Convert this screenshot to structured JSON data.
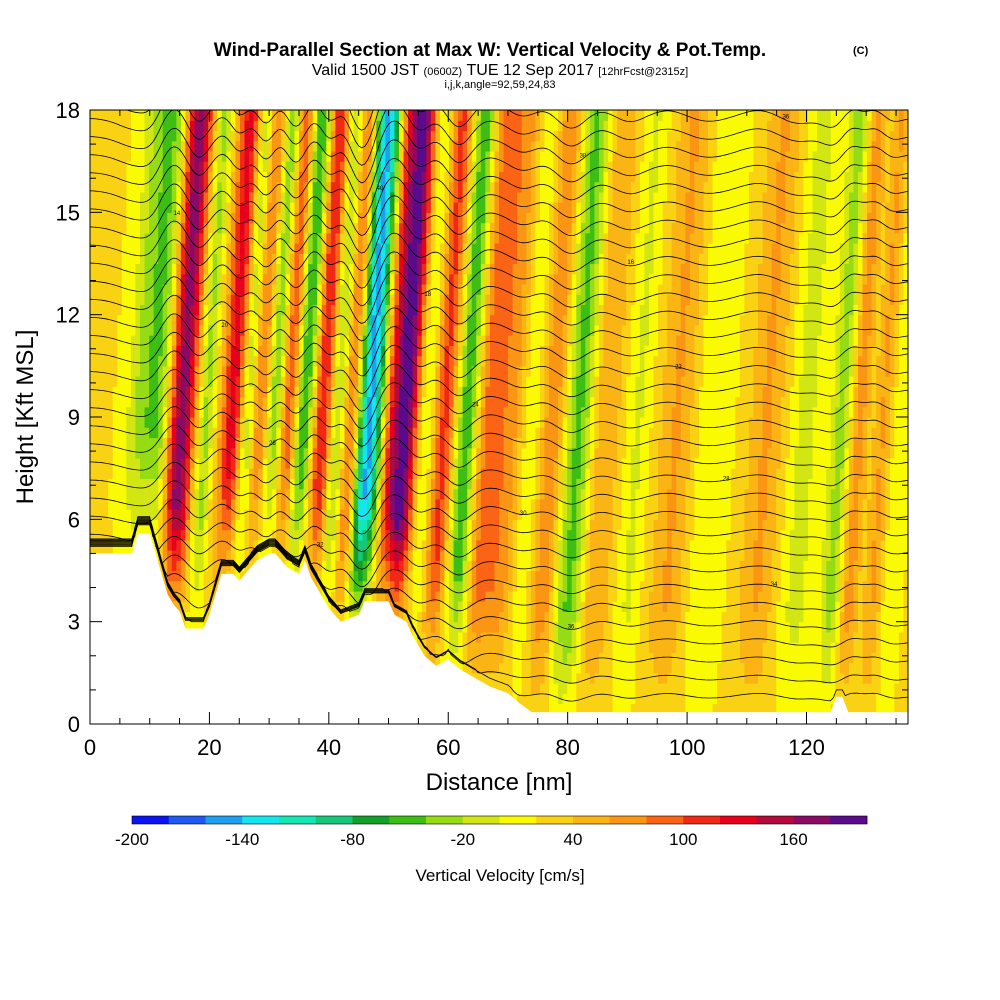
{
  "chart_data": {
    "type": "heatmap",
    "title": "Wind-Parallel Section at Max W: Vertical Velocity & Pot.Temp.",
    "title_mark": "(C)",
    "subtitle_main": "Valid 1500 JST",
    "subtitle_utc": "(0600Z)",
    "subtitle_date": "TUE 12 Sep 2017",
    "subtitle_fcst": "[12hrFcst@2315z]",
    "subtitle_indices": "i,j,k,angle=92,59,24,83",
    "xlabel": "Distance [nm]",
    "ylabel": "Height [Kft MSL]",
    "xlim": [
      0,
      137
    ],
    "ylim": [
      0,
      18
    ],
    "xticks": [
      0,
      20,
      40,
      60,
      80,
      100,
      120
    ],
    "yticks": [
      0,
      3,
      6,
      9,
      12,
      15,
      18
    ],
    "colorbar": {
      "label": "Vertical Velocity [cm/s]",
      "vmin": -200,
      "vmax": 200,
      "step": 20,
      "tick_values": [
        -200,
        -140,
        -80,
        -20,
        40,
        100,
        160
      ],
      "tick_labels": [
        "-200",
        "-140",
        "-80",
        "-20",
        "40",
        "100",
        "160"
      ],
      "colors": [
        "#0a14f0",
        "#1e5af0",
        "#1ea0f0",
        "#14e6f0",
        "#14e6b4",
        "#14c878",
        "#14a028",
        "#3cbe14",
        "#96dc14",
        "#d2e614",
        "#fafa00",
        "#fad214",
        "#fab414",
        "#fa9614",
        "#fa6414",
        "#f02814",
        "#e6001e",
        "#b40a3c",
        "#8c0a64",
        "#5a0a8c"
      ]
    },
    "vertical_velocity_bands": [
      {
        "x": 8,
        "w": 3,
        "v": -60
      },
      {
        "x": 10.5,
        "w": 1.5,
        "v": -30
      },
      {
        "x": 14,
        "w": 2.2,
        "v": 150
      },
      {
        "x": 18,
        "w": 1.5,
        "v": -50
      },
      {
        "x": 22.5,
        "w": 2,
        "v": 110
      },
      {
        "x": 25,
        "w": 1.5,
        "v": -60
      },
      {
        "x": 27,
        "w": 1.5,
        "v": 70
      },
      {
        "x": 29.5,
        "w": 1.5,
        "v": -60
      },
      {
        "x": 32,
        "w": 1.5,
        "v": 90
      },
      {
        "x": 34.5,
        "w": 2,
        "v": -90
      },
      {
        "x": 37.5,
        "w": 1.8,
        "v": 110
      },
      {
        "x": 40,
        "w": 1.5,
        "v": -60
      },
      {
        "x": 42.5,
        "w": 1.5,
        "v": 80
      },
      {
        "x": 45.5,
        "w": 2.2,
        "v": -170
      },
      {
        "x": 49,
        "w": 1.5,
        "v": 60
      },
      {
        "x": 51.5,
        "w": 2.2,
        "v": 170
      },
      {
        "x": 55,
        "w": 2,
        "v": -40
      },
      {
        "x": 58,
        "w": 2,
        "v": 90
      },
      {
        "x": 62,
        "w": 2.2,
        "v": -90
      },
      {
        "x": 65,
        "w": 2.5,
        "v": 70
      },
      {
        "x": 69,
        "w": 2.5,
        "v": 50
      },
      {
        "x": 73,
        "w": 2.5,
        "v": -30
      },
      {
        "x": 76,
        "w": 2.5,
        "v": 60
      },
      {
        "x": 80.5,
        "w": 2.5,
        "v": -70
      },
      {
        "x": 85,
        "w": 2.5,
        "v": 40
      },
      {
        "x": 90.5,
        "w": 2,
        "v": -25
      },
      {
        "x": 97,
        "w": 3,
        "v": 40
      },
      {
        "x": 103,
        "w": 3,
        "v": -20
      },
      {
        "x": 112,
        "w": 3,
        "v": 40
      },
      {
        "x": 118.5,
        "w": 2.5,
        "v": -30
      },
      {
        "x": 124.5,
        "w": 1.8,
        "v": -50
      },
      {
        "x": 127.5,
        "w": 1.5,
        "v": 50
      },
      {
        "x": 131.5,
        "w": 1.5,
        "v": 40
      },
      {
        "x": 134.5,
        "w": 1.5,
        "v": -20
      }
    ],
    "terrain_heights": [
      [
        0,
        5.0
      ],
      [
        7,
        5.0
      ],
      [
        8,
        5.6
      ],
      [
        10,
        5.6
      ],
      [
        11,
        5.0
      ],
      [
        12,
        4.4
      ],
      [
        13,
        3.8
      ],
      [
        14,
        3.5
      ],
      [
        15,
        3.3
      ],
      [
        16,
        2.8
      ],
      [
        19,
        2.8
      ],
      [
        20,
        3.2
      ],
      [
        21,
        3.8
      ],
      [
        22,
        4.4
      ],
      [
        24,
        4.4
      ],
      [
        25,
        4.2
      ],
      [
        26,
        4.4
      ],
      [
        28,
        4.8
      ],
      [
        30,
        5.0
      ],
      [
        31,
        5.0
      ],
      [
        33,
        4.6
      ],
      [
        35,
        4.4
      ],
      [
        36,
        4.8
      ],
      [
        37,
        4.3
      ],
      [
        38,
        4.0
      ],
      [
        40,
        3.4
      ],
      [
        42,
        3.0
      ],
      [
        45,
        3.2
      ],
      [
        46,
        3.6
      ],
      [
        50,
        3.6
      ],
      [
        51,
        3.2
      ],
      [
        53,
        3.0
      ],
      [
        54,
        2.6
      ],
      [
        55,
        2.3
      ],
      [
        56,
        2.0
      ],
      [
        58,
        1.7
      ],
      [
        60,
        1.9
      ],
      [
        62,
        1.6
      ],
      [
        65,
        1.3
      ],
      [
        67,
        1.1
      ],
      [
        70,
        0.9
      ],
      [
        72,
        0.6
      ],
      [
        74,
        0.35
      ],
      [
        124,
        0.35
      ],
      [
        125,
        0.8
      ],
      [
        126,
        0.8
      ],
      [
        127,
        0.35
      ],
      [
        137,
        0.35
      ]
    ],
    "theta_contour_labels": [
      "40",
      "38",
      "36",
      "34",
      "32",
      "30",
      "28",
      "26",
      "24",
      "22",
      "20",
      "18",
      "16",
      "14"
    ]
  }
}
